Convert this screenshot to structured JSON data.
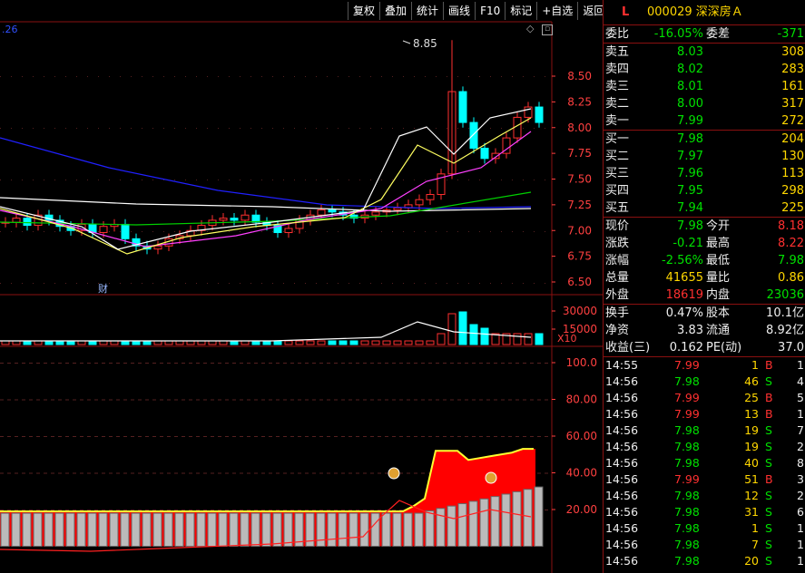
{
  "toolbar": [
    "复权",
    "叠加",
    "统计",
    "画线",
    "F10",
    "标记",
    "+自选",
    "返回"
  ],
  "price_chart": {
    "corner_label": ".26",
    "peak_label": "8.85",
    "event_marker": "财",
    "y_ticks": [
      "8.50",
      "8.25",
      "8.00",
      "7.75",
      "7.50",
      "7.25",
      "7.00",
      "6.75",
      "6.50"
    ]
  },
  "volume_chart": {
    "y_ticks": [
      "30000",
      "15000"
    ],
    "unit_label": "X10"
  },
  "indicator_chart": {
    "y_ticks": [
      "100.0",
      "80.00",
      "60.00",
      "40.00",
      "20.00"
    ]
  },
  "quote": {
    "level": "L",
    "code_name": "000029 深深房Ａ",
    "ratio": {
      "label": "委比",
      "value": "-16.05%",
      "label2": "委差",
      "value2": "-371"
    },
    "asks": [
      {
        "label": "卖五",
        "price": "8.03",
        "vol": "308"
      },
      {
        "label": "卖四",
        "price": "8.02",
        "vol": "283"
      },
      {
        "label": "卖三",
        "price": "8.01",
        "vol": "161"
      },
      {
        "label": "卖二",
        "price": "8.00",
        "vol": "317"
      },
      {
        "label": "卖一",
        "price": "7.99",
        "vol": "272"
      }
    ],
    "bids": [
      {
        "label": "买一",
        "price": "7.98",
        "vol": "204"
      },
      {
        "label": "买二",
        "price": "7.97",
        "vol": "130"
      },
      {
        "label": "买三",
        "price": "7.96",
        "vol": "113"
      },
      {
        "label": "买四",
        "price": "7.95",
        "vol": "298"
      },
      {
        "label": "买五",
        "price": "7.94",
        "vol": "225"
      }
    ],
    "stats": [
      {
        "l1": "现价",
        "v1": "7.98",
        "c1": "g",
        "l2": "今开",
        "v2": "8.18",
        "c2": "r"
      },
      {
        "l1": "涨跌",
        "v1": "-0.21",
        "c1": "g",
        "l2": "最高",
        "v2": "8.22",
        "c2": "r"
      },
      {
        "l1": "涨幅",
        "v1": "-2.56%",
        "c1": "g",
        "l2": "最低",
        "v2": "7.98",
        "c2": "g"
      },
      {
        "l1": "总量",
        "v1": "41655",
        "c1": "y",
        "l2": "量比",
        "v2": "0.86",
        "c2": "y"
      },
      {
        "l1": "外盘",
        "v1": "18619",
        "c1": "r",
        "l2": "内盘",
        "v2": "23036",
        "c2": "g"
      }
    ],
    "fin": [
      {
        "l1": "换手",
        "v1": "0.47%",
        "l2": "股本",
        "v2": "10.1亿"
      },
      {
        "l1": "净资",
        "v1": "3.83",
        "l2": "流通",
        "v2": "8.92亿"
      },
      {
        "l1": "收益(三)",
        "v1": "0.162",
        "l2": "PE(动)",
        "v2": "37.0"
      }
    ],
    "ticks": [
      {
        "time": "14:55",
        "price": "7.99",
        "vol": "1",
        "bs": "B",
        "n": "1"
      },
      {
        "time": "14:56",
        "price": "7.98",
        "vol": "46",
        "bs": "S",
        "n": "4"
      },
      {
        "time": "14:56",
        "price": "7.99",
        "vol": "25",
        "bs": "B",
        "n": "5"
      },
      {
        "time": "14:56",
        "price": "7.99",
        "vol": "13",
        "bs": "B",
        "n": "1"
      },
      {
        "time": "14:56",
        "price": "7.98",
        "vol": "19",
        "bs": "S",
        "n": "7"
      },
      {
        "time": "14:56",
        "price": "7.98",
        "vol": "19",
        "bs": "S",
        "n": "2"
      },
      {
        "time": "14:56",
        "price": "7.98",
        "vol": "40",
        "bs": "S",
        "n": "8"
      },
      {
        "time": "14:56",
        "price": "7.99",
        "vol": "51",
        "bs": "B",
        "n": "3"
      },
      {
        "time": "14:56",
        "price": "7.98",
        "vol": "12",
        "bs": "S",
        "n": "2"
      },
      {
        "time": "14:56",
        "price": "7.98",
        "vol": "31",
        "bs": "S",
        "n": "6"
      },
      {
        "time": "14:56",
        "price": "7.98",
        "vol": "1",
        "bs": "S",
        "n": "1"
      },
      {
        "time": "14:56",
        "price": "7.98",
        "vol": "7",
        "bs": "S",
        "n": "1"
      },
      {
        "time": "14:56",
        "price": "7.98",
        "vol": "20",
        "bs": "S",
        "n": "1"
      }
    ]
  },
  "colors": {
    "up": "#ff3030",
    "down": "#00ffff",
    "grid": "#8a1010",
    "ma_white": "#ffffff",
    "ma_yellow": "#ffff60",
    "ma_magenta": "#ff40ff",
    "ma_green": "#00d000",
    "ma_blue": "#2020ff"
  }
}
